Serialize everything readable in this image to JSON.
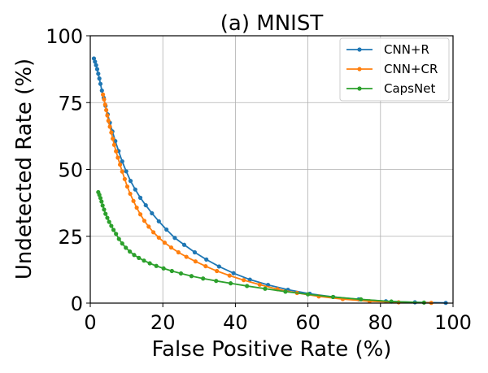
{
  "chart_data": {
    "type": "line",
    "title": "(a) MNIST",
    "xlabel": "False Positive Rate (%)",
    "ylabel": "Undetected Rate (%)",
    "xlim": [
      0,
      100
    ],
    "ylim": [
      0,
      100
    ],
    "xticks": [
      0,
      20,
      40,
      60,
      80,
      100
    ],
    "yticks": [
      0,
      25,
      50,
      75,
      100
    ],
    "xtick_labels": [
      "0",
      "20",
      "40",
      "60",
      "80",
      "100"
    ],
    "ytick_labels": [
      "0",
      "25",
      "50",
      "75",
      "100"
    ],
    "grid": true,
    "legend_position": "top-right",
    "series": [
      {
        "name": "CNN+R",
        "color": "#1f77b4",
        "x": [
          1.0,
          1.3,
          1.6,
          1.9,
          2.2,
          2.5,
          2.8,
          3.2,
          3.7,
          4.2,
          4.8,
          5.4,
          6.1,
          6.9,
          7.8,
          8.8,
          9.9,
          11.1,
          12.4,
          13.8,
          15.3,
          17.0,
          18.9,
          21.0,
          23.3,
          25.9,
          28.8,
          32.0,
          35.5,
          39.5,
          44.0,
          49.0,
          54.5,
          60.5,
          67.0,
          74.0,
          81.5,
          89.5,
          98.0
        ],
        "y": [
          91.5,
          90.3,
          89.0,
          87.5,
          85.8,
          84.0,
          82.0,
          79.5,
          76.8,
          73.8,
          70.6,
          67.5,
          64.2,
          60.6,
          56.9,
          53.0,
          49.3,
          45.7,
          42.5,
          39.4,
          36.6,
          33.6,
          30.6,
          27.5,
          24.4,
          21.8,
          19.0,
          16.3,
          13.7,
          11.2,
          8.8,
          6.8,
          5.0,
          3.5,
          2.3,
          1.4,
          0.7,
          0.3,
          0.1
        ]
      },
      {
        "name": "CNN+CR",
        "color": "#ff7f0e",
        "x": [
          3.5,
          3.8,
          4.1,
          4.4,
          4.7,
          5.0,
          5.4,
          5.8,
          6.2,
          6.6,
          7.1,
          7.6,
          8.2,
          8.8,
          9.5,
          10.2,
          11.0,
          11.9,
          12.8,
          13.8,
          14.9,
          16.1,
          17.4,
          18.9,
          20.5,
          22.3,
          24.3,
          26.5,
          29.0,
          31.8,
          34.9,
          38.4,
          42.3,
          46.7,
          51.6,
          57.0,
          63.0,
          69.6,
          77.0,
          85.0,
          94.0
        ],
        "y": [
          78.0,
          76.2,
          74.2,
          72.2,
          70.2,
          68.2,
          66.0,
          63.8,
          61.5,
          59.2,
          56.8,
          54.4,
          51.8,
          49.2,
          46.4,
          43.6,
          40.9,
          38.2,
          35.7,
          33.2,
          30.8,
          28.6,
          26.5,
          24.5,
          22.6,
          20.8,
          19.0,
          17.3,
          15.6,
          13.8,
          12.0,
          10.3,
          8.6,
          6.9,
          5.2,
          3.8,
          2.5,
          1.5,
          0.7,
          0.3,
          0.1
        ]
      },
      {
        "name": "CapsNet",
        "color": "#2ca02c",
        "x": [
          2.2,
          2.5,
          2.8,
          3.1,
          3.4,
          3.8,
          4.2,
          4.7,
          5.2,
          5.8,
          6.4,
          7.1,
          7.9,
          8.8,
          9.8,
          10.9,
          12.1,
          13.4,
          14.8,
          16.4,
          18.2,
          20.2,
          22.5,
          25.0,
          27.9,
          31.1,
          34.7,
          38.7,
          43.2,
          48.2,
          53.8,
          60.0,
          66.9,
          74.6,
          83.0,
          92.0
        ],
        "y": [
          41.5,
          40.5,
          39.3,
          38.0,
          36.5,
          35.0,
          33.4,
          31.9,
          30.4,
          28.9,
          27.4,
          25.9,
          24.0,
          22.3,
          20.7,
          19.3,
          18.0,
          16.9,
          15.9,
          14.9,
          13.9,
          13.0,
          12.0,
          11.1,
          10.1,
          9.2,
          8.3,
          7.4,
          6.4,
          5.4,
          4.3,
          3.3,
          2.3,
          1.4,
          0.6,
          0.2
        ]
      }
    ]
  }
}
